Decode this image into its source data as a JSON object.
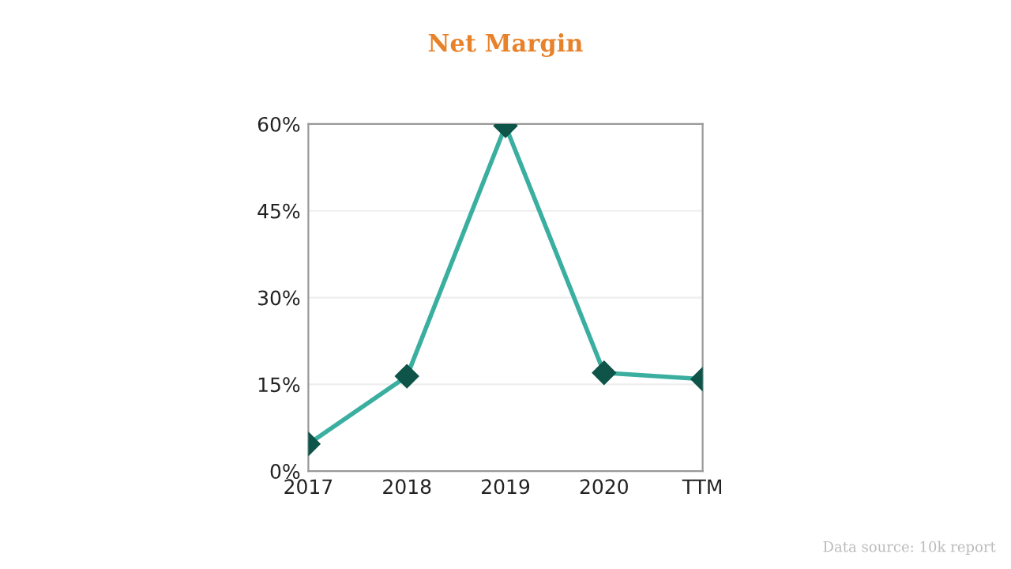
{
  "chart_data": {
    "type": "line",
    "title": "Net Margin",
    "categories": [
      "2017",
      "2018",
      "2019",
      "2020",
      "TTM"
    ],
    "series": [
      {
        "color": "#3aafa0",
        "values": [
          4.7,
          16.4,
          59.7,
          17.0,
          15.9
        ]
      }
    ],
    "ylim": [
      0,
      60
    ],
    "yticks": [
      {
        "value": 0,
        "label": "0%"
      },
      {
        "value": 15,
        "label": "15%"
      },
      {
        "value": 30,
        "label": "30%"
      },
      {
        "value": 45,
        "label": "45%"
      },
      {
        "value": 60,
        "label": "60%"
      }
    ],
    "grid": "y",
    "marker": "diamond",
    "line_style": "solid",
    "annotations": [
      "Data source: 10k report"
    ]
  }
}
